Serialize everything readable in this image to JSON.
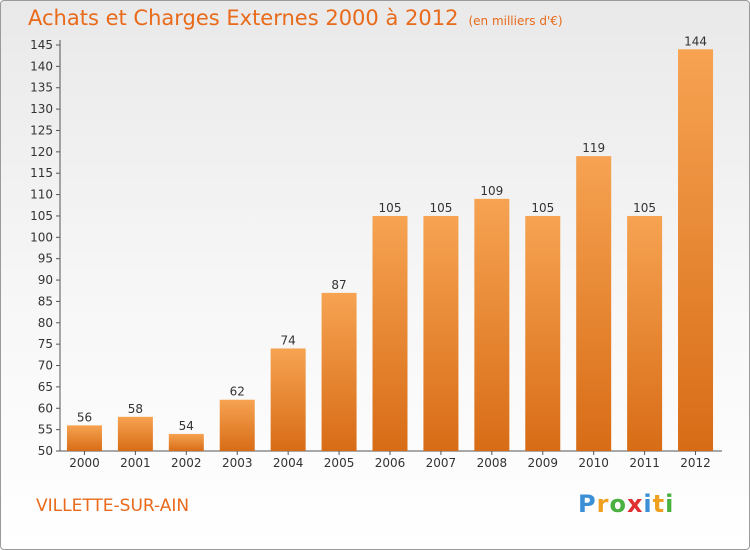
{
  "header": {
    "title": "Achats et Charges Externes 2000 à 2012",
    "unit": "(en milliers d'€)"
  },
  "footer": {
    "commune": "VILLETTE-SUR-AIN",
    "logo_letters": [
      "P",
      "r",
      "o",
      "x",
      "i",
      "t",
      "i"
    ],
    "logo_colors": [
      "#3a8fd6",
      "#f0a020",
      "#4ab040",
      "#e03030",
      "#3a8fd6",
      "#f0a020",
      "#4ab040"
    ]
  },
  "colors": {
    "accent": "#e86a1a",
    "bar_top": "#f6a352",
    "bar_bottom": "#d86c16"
  },
  "chart_data": {
    "type": "bar",
    "title": "Achats et Charges Externes 2000 à 2012",
    "subtitle": "(en milliers d'€)",
    "categories": [
      "2000",
      "2001",
      "2002",
      "2003",
      "2004",
      "2005",
      "2006",
      "2007",
      "2008",
      "2009",
      "2010",
      "2011",
      "2012"
    ],
    "values": [
      56,
      58,
      54,
      62,
      74,
      87,
      105,
      105,
      109,
      105,
      119,
      105,
      144
    ],
    "ylim": [
      50,
      145
    ],
    "ytick_step": 5,
    "grid": false,
    "data_labels": true
  }
}
